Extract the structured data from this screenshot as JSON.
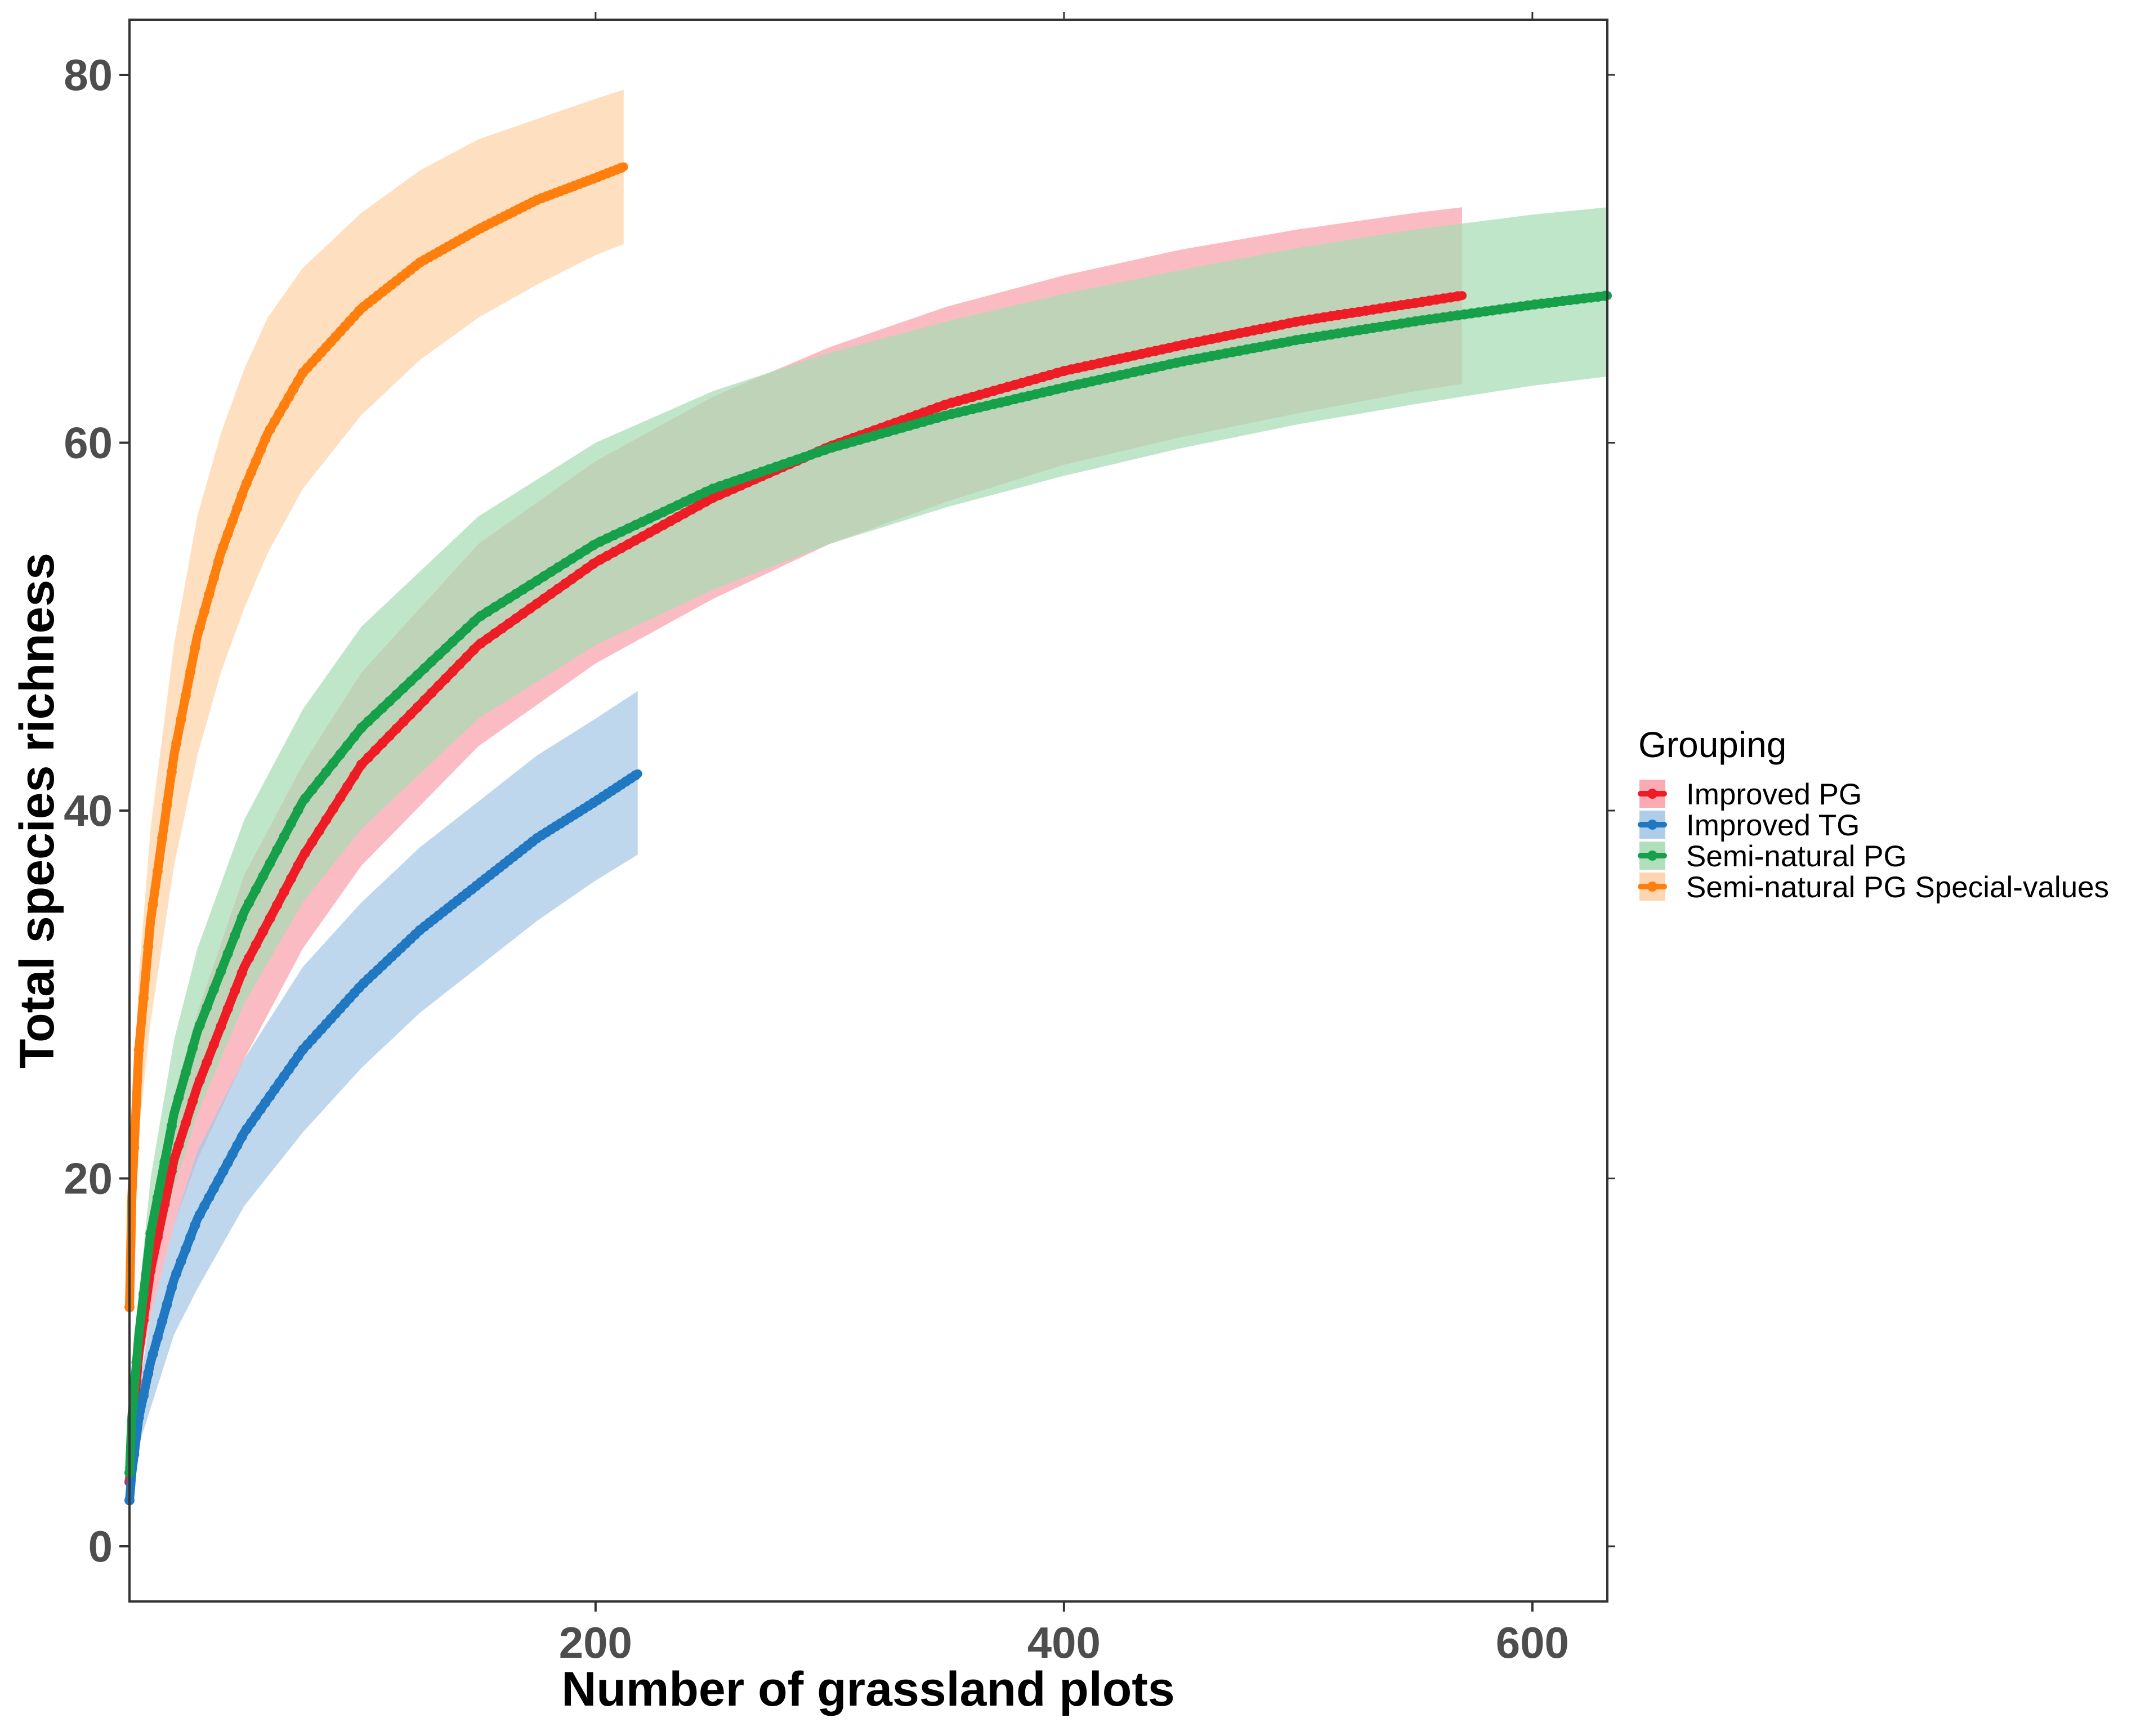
{
  "chart_data": {
    "type": "line",
    "title": "",
    "xlabel": "Number of grassland plots",
    "ylabel": "Total species richness",
    "xlim": [
      1,
      632
    ],
    "ylim": [
      -3,
      83
    ],
    "xticks": [
      200,
      400,
      600
    ],
    "yticks": [
      0,
      20,
      40,
      60,
      80
    ],
    "grid": false,
    "legend": {
      "title": "Grouping",
      "position": "right"
    },
    "series": [
      {
        "name": "Improved PG",
        "color": "#ee1c25",
        "band_color": "#f8a2ab",
        "x": [
          1,
          2,
          5,
          10,
          20,
          30,
          50,
          75,
          100,
          150,
          200,
          250,
          300,
          350,
          400,
          450,
          500,
          550,
          570
        ],
        "y": [
          3.5,
          6,
          10.5,
          15,
          21,
          25,
          31.5,
          37.5,
          42.5,
          49,
          53.5,
          57,
          59.8,
          62.1,
          63.9,
          65.3,
          66.6,
          67.6,
          68
        ],
        "lower": [
          3,
          5,
          9,
          12.5,
          17.5,
          21,
          26.5,
          32.5,
          37,
          43.5,
          48,
          51.5,
          54.5,
          56.8,
          58.8,
          60.3,
          61.6,
          62.8,
          63.2
        ],
        "upper": [
          4,
          7,
          12,
          17.5,
          24.5,
          29,
          36.5,
          42.5,
          47.5,
          54.5,
          59,
          62.5,
          65.2,
          67.4,
          69.1,
          70.5,
          71.6,
          72.5,
          72.8
        ]
      },
      {
        "name": "Improved TG",
        "color": "#1f78c1",
        "band_color": "#a6c8e6",
        "x": [
          1,
          2,
          5,
          10,
          20,
          30,
          50,
          75,
          100,
          125,
          150,
          175,
          200,
          218
        ],
        "y": [
          2.5,
          4,
          7,
          10,
          14.5,
          17.8,
          22.5,
          27,
          30.5,
          33.5,
          36,
          38.5,
          40.5,
          42
        ],
        "lower": [
          2,
          3,
          5.5,
          7.5,
          11.5,
          14,
          18.5,
          22.5,
          26,
          29,
          31.5,
          34,
          36.2,
          37.6
        ],
        "upper": [
          3,
          5,
          8.5,
          12.5,
          17.5,
          21.5,
          26.5,
          31.5,
          35,
          38,
          40.5,
          43,
          45,
          46.5
        ]
      },
      {
        "name": "Semi-natural PG",
        "color": "#16a04a",
        "band_color": "#a8dcb6",
        "x": [
          1,
          2,
          5,
          10,
          20,
          30,
          50,
          75,
          100,
          150,
          200,
          250,
          300,
          350,
          400,
          450,
          500,
          550,
          600,
          632
        ],
        "y": [
          4,
          7,
          11.5,
          17,
          23.5,
          28,
          34.5,
          40.5,
          44.5,
          50.5,
          54.5,
          57.5,
          59.7,
          61.5,
          63,
          64.4,
          65.6,
          66.6,
          67.5,
          68
        ],
        "lower": [
          3.5,
          6,
          9.5,
          14,
          19.5,
          23.5,
          29.5,
          35,
          39,
          45,
          49,
          52,
          54.5,
          56.5,
          58.2,
          59.7,
          61,
          62.1,
          63.1,
          63.6
        ],
        "upper": [
          4.5,
          8,
          13.5,
          20,
          27.5,
          32.5,
          39.5,
          45.5,
          50,
          56,
          60,
          62.8,
          64.9,
          66.6,
          68.1,
          69.4,
          70.6,
          71.6,
          72.4,
          72.8
        ]
      },
      {
        "name": "Semi-natural PG Special-values",
        "color": "#ff7f0e",
        "band_color": "#fdd2a8",
        "x": [
          1,
          2,
          5,
          10,
          20,
          30,
          40,
          50,
          60,
          75,
          100,
          125,
          150,
          175,
          200,
          212
        ],
        "y": [
          13,
          19,
          27,
          34,
          43,
          49.5,
          54,
          57.5,
          60.5,
          63.8,
          67.3,
          69.8,
          71.6,
          73.2,
          74.4,
          75
        ],
        "lower": [
          11,
          16,
          22.5,
          28.5,
          37,
          43,
          47.5,
          51,
          54,
          57.5,
          61.5,
          64.5,
          66.8,
          68.6,
          70.2,
          70.8
        ],
        "upper": [
          15,
          22,
          31,
          39,
          49,
          56,
          60.5,
          64,
          66.8,
          69.5,
          72.5,
          74.8,
          76.5,
          77.6,
          78.7,
          79.2
        ]
      }
    ]
  }
}
